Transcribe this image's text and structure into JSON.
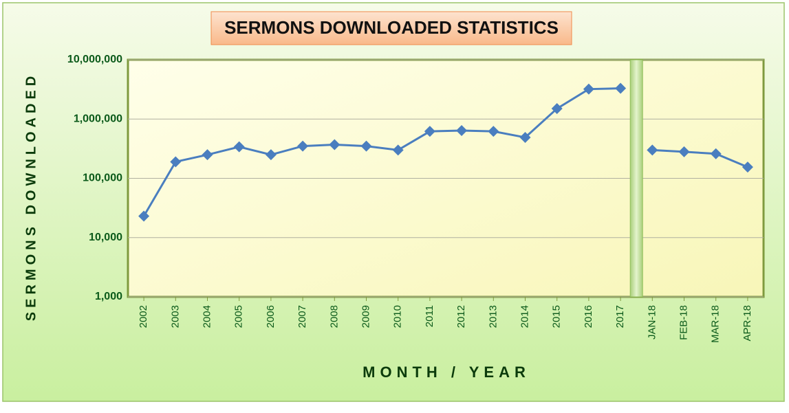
{
  "chart_data": {
    "type": "line",
    "title": "SERMONS DOWNLOADED STATISTICS",
    "x_label": "MONTH / YEAR",
    "y_label": "SERMONS DOWNLOADED",
    "categories": [
      "2002",
      "2003",
      "2004",
      "2005",
      "2006",
      "2007",
      "2008",
      "2009",
      "2010",
      "2011",
      "2012",
      "2013",
      "2014",
      "2015",
      "2016",
      "2017",
      "JAN-18",
      "FEB-18",
      "MAR-18",
      "APR-18"
    ],
    "series": [
      {
        "color": "#4a7ebf",
        "values": [
          23000,
          190000,
          250000,
          340000,
          250000,
          350000,
          370000,
          350000,
          300000,
          620000,
          640000,
          620000,
          490000,
          1500000,
          3200000,
          3300000,
          null,
          null,
          null,
          null
        ]
      },
      {
        "color": "#4a7ebf",
        "values": [
          null,
          null,
          null,
          null,
          null,
          null,
          null,
          null,
          null,
          null,
          null,
          null,
          null,
          null,
          null,
          null,
          300000,
          280000,
          260000,
          155000
        ]
      }
    ],
    "log_scale": true,
    "ylim": [
      1000,
      10000000
    ],
    "yticks": [
      {
        "value": 1000,
        "label": "1,000"
      },
      {
        "value": 10000,
        "label": "10,000"
      },
      {
        "value": 100000,
        "label": "100,000"
      },
      {
        "value": 1000000,
        "label": "1,000,000"
      },
      {
        "value": 10000000,
        "label": "10,000,000"
      }
    ],
    "grid": true
  }
}
